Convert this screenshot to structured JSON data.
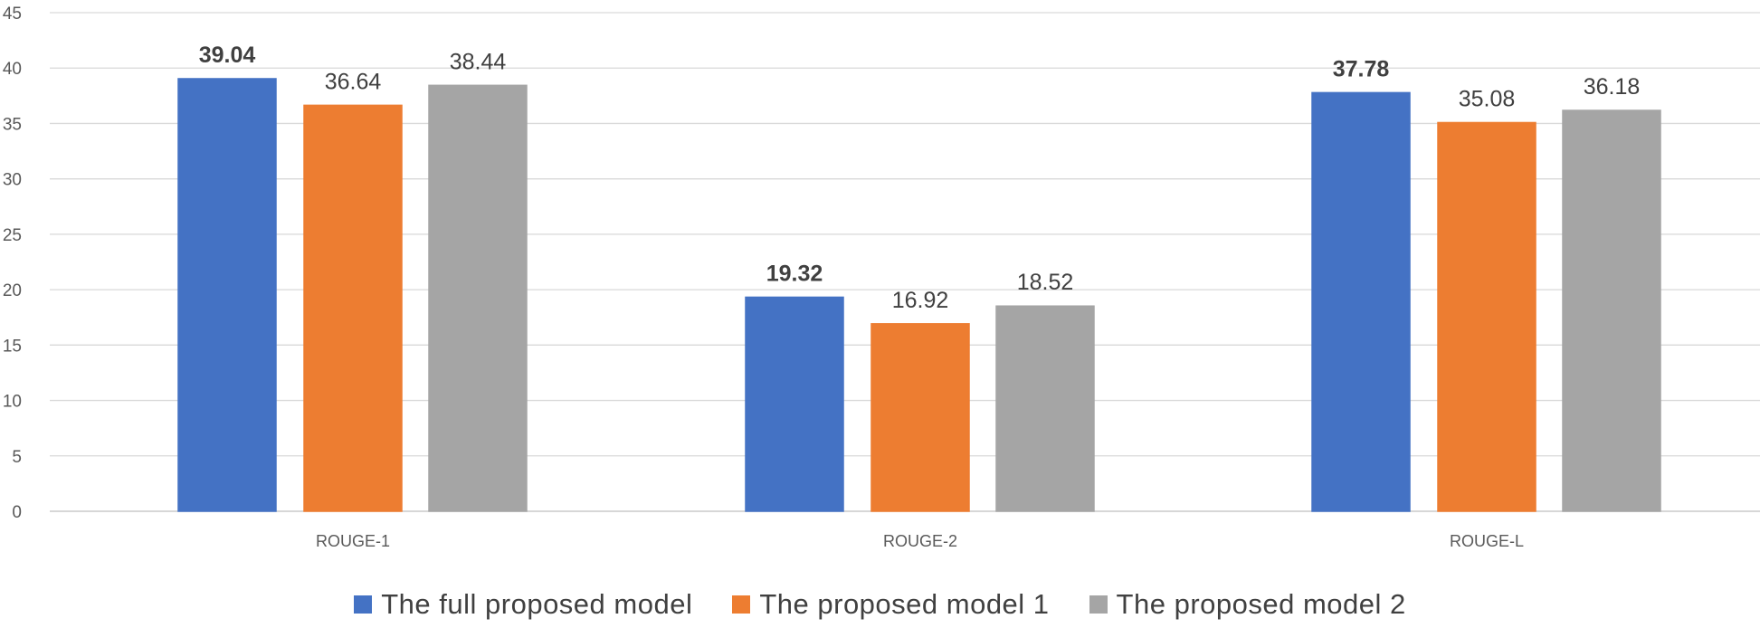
{
  "chart_data": {
    "type": "bar",
    "categories": [
      "ROUGE-1",
      "ROUGE-2",
      "ROUGE-L"
    ],
    "series": [
      {
        "name": "The full proposed model",
        "values": [
          39.04,
          19.32,
          37.78
        ],
        "color": "#4472C4",
        "label_bold": true
      },
      {
        "name": "The proposed model 1",
        "values": [
          36.64,
          16.92,
          35.08
        ],
        "color": "#ED7D31",
        "label_bold": false
      },
      {
        "name": "The proposed model 2",
        "values": [
          38.44,
          18.52,
          36.18
        ],
        "color": "#A5A5A5",
        "label_bold": false
      }
    ],
    "value_labels": [
      [
        "39.04",
        "19.32",
        "37.78"
      ],
      [
        "36.64",
        "16.92",
        "35.08"
      ],
      [
        "38.44",
        "18.52",
        "36.18"
      ]
    ],
    "y_ticks": [
      "0",
      "5",
      "10",
      "15",
      "20",
      "25",
      "30",
      "35",
      "40",
      "45"
    ],
    "ylim": [
      0,
      45
    ],
    "grid": true,
    "legend_position": "bottom"
  }
}
